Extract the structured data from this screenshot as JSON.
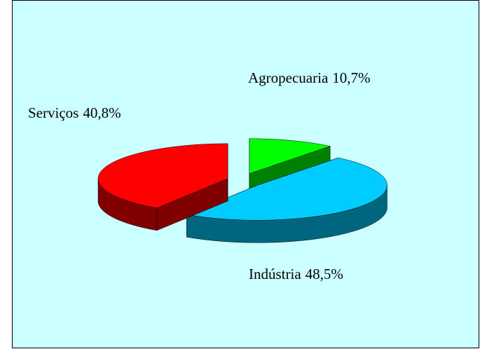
{
  "chart_data": {
    "type": "pie",
    "categories": [
      "Agropecuaria",
      "Indústria",
      "Serviços"
    ],
    "values": [
      10.7,
      48.5,
      40.8
    ],
    "value_labels": [
      "10,7%",
      "48,5%",
      "40,8%"
    ],
    "colors": [
      "#00ff00",
      "#00ccff",
      "#ff0000"
    ]
  }
}
